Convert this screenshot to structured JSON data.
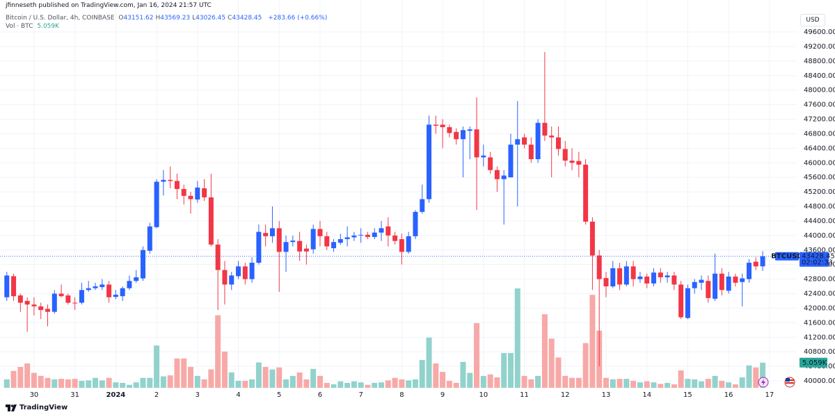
{
  "header": {
    "publisher": "jfinneseth published on TradingView.com, Jan 16, 2024 21:57 UTC",
    "brand": "TradingView"
  },
  "chart_data": {
    "type": "candlestick",
    "title": "Bitcoin / U.S. Dollar, 4h, COINBASE",
    "ohlc_keys": [
      "O",
      "H",
      "L",
      "C"
    ],
    "change_label": "+283.66 (+0.66%)",
    "volume_title": "Vol · BTC",
    "currency": "USD",
    "symbol": "BTCUSD",
    "countdown": "02:02:33",
    "open": [
      42300,
      42880,
      42350,
      42200,
      42100,
      42050,
      41980,
      41900,
      42400,
      42350,
      42150,
      42150,
      42500,
      42550,
      42580,
      42650,
      42310,
      42330,
      42550,
      42750,
      42820,
      43580,
      44230,
      45480,
      45530,
      45500,
      45280,
      45090,
      44990,
      45300,
      45050,
      43750,
      43050,
      42650,
      42880,
      43150,
      42800,
      43250,
      44070,
      43980,
      44200,
      43550,
      43820,
      43850,
      43640,
      43620,
      44180,
      43980,
      43650,
      43800,
      43900,
      43950,
      44000,
      44020,
      43960,
      44080,
      44250,
      44000,
      43900,
      43550,
      43980,
      44650,
      45000,
      47050,
      47050,
      46980,
      46850,
      46650,
      46880,
      46920,
      46150,
      46150,
      45800,
      45550,
      45600,
      46500,
      46700,
      46500,
      46100,
      47100,
      46750,
      46700,
      46380,
      46060,
      46050,
      45950,
      44380,
      43450,
      42830,
      42600,
      43100,
      42650,
      43150,
      42800,
      42870,
      42680,
      42980,
      42850,
      42900,
      42650,
      41730,
      42550,
      42700,
      42750,
      42260,
      42950,
      42480,
      42870,
      42720,
      42800,
      43280,
      43151.62
    ],
    "high": [
      43000,
      42950,
      42400,
      42300,
      42300,
      42150,
      42100,
      42500,
      42650,
      42400,
      42300,
      42700,
      42750,
      42700,
      42800,
      42750,
      42500,
      42600,
      42900,
      43050,
      43700,
      44350,
      45550,
      45800,
      45900,
      45700,
      45400,
      45200,
      45500,
      45550,
      45700,
      43900,
      43300,
      43000,
      43300,
      43250,
      43400,
      44300,
      44300,
      44800,
      44400,
      44000,
      44000,
      44100,
      43750,
      44300,
      44400,
      44100,
      43900,
      44050,
      44250,
      44100,
      44200,
      44100,
      44200,
      44400,
      44500,
      44100,
      44050,
      44100,
      44700,
      45400,
      47300,
      47300,
      47200,
      47050,
      46950,
      47000,
      47000,
      47800,
      46500,
      46300,
      45900,
      45800,
      46800,
      47700,
      46800,
      46700,
      47200,
      49050,
      47000,
      47000,
      46600,
      46400,
      46300,
      46100,
      44500,
      43600,
      43000,
      43300,
      43250,
      43300,
      43300,
      43000,
      42950,
      43100,
      43100,
      43000,
      43000,
      42750,
      42650,
      42800,
      42900,
      42900,
      43500,
      43100,
      43000,
      42950,
      42950,
      43350,
      43400,
      43569.23
    ],
    "low": [
      42200,
      42200,
      41900,
      41350,
      41800,
      41700,
      41500,
      41850,
      42300,
      42100,
      41950,
      42100,
      42450,
      42500,
      42500,
      42150,
      42250,
      42200,
      42500,
      42700,
      42750,
      43500,
      44200,
      45100,
      45300,
      45000,
      44850,
      44600,
      44900,
      44950,
      43700,
      41950,
      42100,
      42500,
      42800,
      42650,
      42700,
      43200,
      43700,
      43800,
      42450,
      43000,
      43700,
      43300,
      43200,
      43500,
      43700,
      43600,
      43550,
      43750,
      43700,
      43850,
      43800,
      43900,
      43900,
      43850,
      43700,
      43750,
      43200,
      43500,
      43900,
      44600,
      44900,
      46800,
      46400,
      46700,
      46500,
      45600,
      46100,
      44700,
      45900,
      45700,
      45200,
      44300,
      45600,
      44800,
      46400,
      46000,
      46000,
      46600,
      45600,
      46200,
      45900,
      45800,
      45600,
      44300,
      42500,
      40400,
      42300,
      42550,
      42500,
      42600,
      42600,
      42700,
      42550,
      42600,
      42700,
      42700,
      42500,
      41700,
      41700,
      42400,
      42500,
      42150,
      42200,
      42350,
      42400,
      42600,
      42050,
      42700,
      43050,
      43026.45
    ],
    "close": [
      42900,
      42330,
      42150,
      42100,
      42050,
      41950,
      41900,
      42400,
      42330,
      42150,
      42130,
      42500,
      42550,
      42600,
      42650,
      42300,
      42370,
      42550,
      42750,
      42850,
      43600,
      44250,
      45480,
      45530,
      45500,
      45280,
      45090,
      45000,
      45320,
      45050,
      43750,
      43050,
      42650,
      42900,
      43150,
      42800,
      43250,
      44100,
      43980,
      44200,
      43550,
      43820,
      43860,
      43560,
      43560,
      44180,
      43980,
      43700,
      43820,
      43900,
      43950,
      44000,
      44020,
      43960,
      44080,
      44200,
      44000,
      43850,
      43550,
      43980,
      44650,
      45000,
      47050,
      47020,
      46980,
      46820,
      46650,
      46900,
      46920,
      46150,
      46200,
      45800,
      45550,
      45650,
      46500,
      46650,
      46500,
      46100,
      47100,
      46750,
      46700,
      46380,
      46060,
      46000,
      45950,
      44380,
      43450,
      42800,
      42600,
      43100,
      42650,
      43150,
      42800,
      42870,
      42680,
      42980,
      42850,
      42900,
      42650,
      41750,
      42550,
      42720,
      42780,
      42280,
      42950,
      42500,
      42870,
      42700,
      42820,
      43250,
      43150,
      43428.45
    ],
    "volume": [
      1.7,
      3.4,
      4.2,
      4.9,
      3.0,
      2.4,
      2.0,
      1.7,
      1.8,
      1.7,
      1.8,
      1.4,
      1.5,
      2.0,
      1.5,
      2.0,
      1.1,
      1.0,
      0.6,
      1.1,
      2.0,
      2.0,
      8.5,
      2.3,
      2.5,
      5.9,
      5.9,
      4.2,
      2.4,
      1.7,
      3.7,
      14.6,
      7.3,
      3.1,
      1.4,
      1.4,
      1.7,
      5.1,
      4.2,
      3.7,
      4.1,
      1.7,
      2.4,
      3.1,
      1.7,
      3.8,
      2.4,
      1.0,
      0.7,
      1.3,
      1.0,
      1.3,
      1.1,
      0.6,
      1.0,
      1.1,
      1.5,
      2.0,
      1.7,
      1.5,
      1.7,
      5.6,
      10.1,
      4.9,
      3.2,
      1.4,
      1.0,
      5.2,
      3.0,
      13.0,
      2.4,
      2.7,
      2.1,
      7.0,
      7.0,
      20.0,
      2.4,
      1.7,
      2.4,
      14.8,
      9.9,
      6.1,
      2.4,
      2.0,
      2.0,
      9.0,
      18.7,
      11.5,
      2.0,
      1.7,
      1.8,
      1.8,
      1.4,
      1.1,
      1.3,
      1.1,
      0.8,
      1.0,
      0.7,
      3.5,
      1.8,
      1.7,
      1.3,
      1.8,
      2.4,
      1.4,
      1.1,
      0.7,
      2.1,
      4.5,
      4.1,
      5.059
    ],
    "volume_labels": [
      null,
      null,
      null,
      null,
      null,
      null,
      null,
      null,
      null,
      null,
      null,
      null,
      null,
      null,
      null,
      null,
      null,
      null,
      null,
      null,
      null,
      null,
      null,
      null,
      null,
      null,
      null,
      null,
      null,
      null,
      null,
      null,
      null,
      null,
      null,
      null,
      null,
      null,
      null,
      null,
      null,
      null,
      null,
      null,
      null,
      null,
      null,
      null,
      null,
      null,
      null,
      null,
      null,
      null,
      null,
      null,
      null,
      null,
      null,
      null,
      null,
      null,
      null,
      null,
      null,
      null,
      null,
      null,
      null,
      null,
      null,
      null,
      null,
      null,
      null,
      null,
      null,
      null,
      null,
      null,
      null,
      null,
      null,
      null,
      null,
      null,
      null,
      null,
      null,
      null,
      null,
      null,
      null,
      null,
      null,
      null,
      null,
      null,
      null,
      null,
      null,
      null,
      null,
      null,
      null,
      null,
      null,
      null,
      null,
      null,
      null,
      "5.059K"
    ],
    "xlim": [
      -1,
      116
    ],
    "xticks": [
      {
        "value": 4,
        "label": "30"
      },
      {
        "value": 10,
        "label": "31"
      },
      {
        "value": 16,
        "label": "2024"
      },
      {
        "value": 22,
        "label": "2"
      },
      {
        "value": 28,
        "label": "3"
      },
      {
        "value": 34,
        "label": "4"
      },
      {
        "value": 40,
        "label": "5"
      },
      {
        "value": 46,
        "label": "6"
      },
      {
        "value": 52,
        "label": "7"
      },
      {
        "value": 58,
        "label": "8"
      },
      {
        "value": 64,
        "label": "9"
      },
      {
        "value": 70,
        "label": "10"
      },
      {
        "value": 76,
        "label": "11"
      },
      {
        "value": 82,
        "label": "12"
      },
      {
        "value": 88,
        "label": "13"
      },
      {
        "value": 94,
        "label": "14"
      },
      {
        "value": 100,
        "label": "15"
      },
      {
        "value": 106,
        "label": "16"
      },
      {
        "value": 112,
        "label": "17"
      }
    ],
    "ylim": [
      39809,
      50480
    ],
    "yticks": [
      {
        "value": 40000,
        "label": "40000.00"
      },
      {
        "value": 40400,
        "label": "40400.00"
      },
      {
        "value": 40800,
        "label": "40800.00"
      },
      {
        "value": 41200,
        "label": "41200.00"
      },
      {
        "value": 41600,
        "label": "41600.00"
      },
      {
        "value": 42000,
        "label": "42000.00"
      },
      {
        "value": 42400,
        "label": "42400.00"
      },
      {
        "value": 42800,
        "label": "42800.00"
      },
      {
        "value": 43200,
        "label": "43200.00"
      },
      {
        "value": 43600,
        "label": "43600.00"
      },
      {
        "value": 44000,
        "label": "44000.00"
      },
      {
        "value": 44400,
        "label": "44400.00"
      },
      {
        "value": 44800,
        "label": "44800.00"
      },
      {
        "value": 45200,
        "label": "45200.00"
      },
      {
        "value": 45600,
        "label": "45600.00"
      },
      {
        "value": 46000,
        "label": "46000.00"
      },
      {
        "value": 46400,
        "label": "46400.00"
      },
      {
        "value": 46800,
        "label": "46800.00"
      },
      {
        "value": 47200,
        "label": "47200.00"
      },
      {
        "value": 47600,
        "label": "47600.00"
      },
      {
        "value": 48000,
        "label": "48000.00"
      },
      {
        "value": 48400,
        "label": "48400.00"
      },
      {
        "value": 48800,
        "label": "48800.00"
      },
      {
        "value": 49200,
        "label": "49200.00"
      },
      {
        "value": 49600,
        "label": "49600.00"
      }
    ],
    "volume_ylim": [
      0,
      78
    ],
    "up_color": "#2962ff",
    "down_color": "#f23645",
    "volume_up_color": "#92d2cc",
    "volume_down_color": "#f7a9a7",
    "grid": true
  }
}
